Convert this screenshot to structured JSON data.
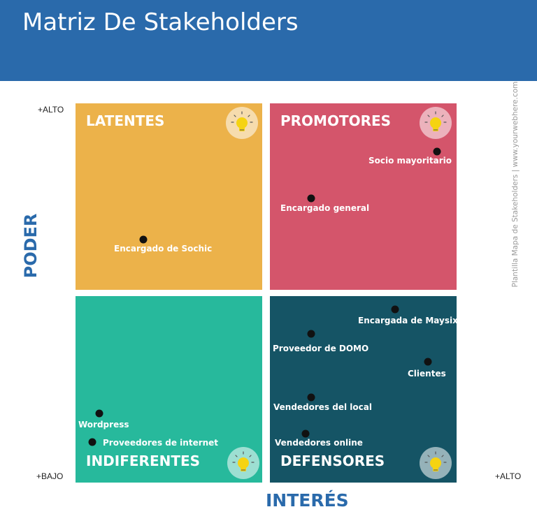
{
  "title": "Matriz De Stakeholders",
  "axes": {
    "y_label": "PODER",
    "x_label": "INTERÉS",
    "y_high": "+ALTO",
    "low": "+BAJO",
    "x_high": "+ALTO"
  },
  "side_note": "Plantilla Mapa de Stakeholders | www.yourwebhere.com",
  "colors": {
    "header": "#2a6aab",
    "latentes": "#ecb24a",
    "promotores": "#d4556b",
    "indiferentes": "#27b99c",
    "defensores": "#155465"
  },
  "quadrants": {
    "latentes": "LATENTES",
    "promotores": "PROMOTORES",
    "indiferentes": "INDIFERENTES",
    "defensores": "DEFENSORES"
  },
  "stakeholders": {
    "encargado_sochic": "Encargado de Sochic",
    "socio_mayoritario": "Socio mayoritario",
    "encargado_general": "Encargado general",
    "encargada_maysix": "Encargada de Maysix",
    "proveedor_domo": "Proveedor de DOMO",
    "clientes": "Clientes",
    "vendedores_local": "Vendedores del local",
    "vendedores_online": "Vendedores online",
    "wordpress": "Wordpress",
    "proveedores_internet": "Proveedores de internet"
  }
}
